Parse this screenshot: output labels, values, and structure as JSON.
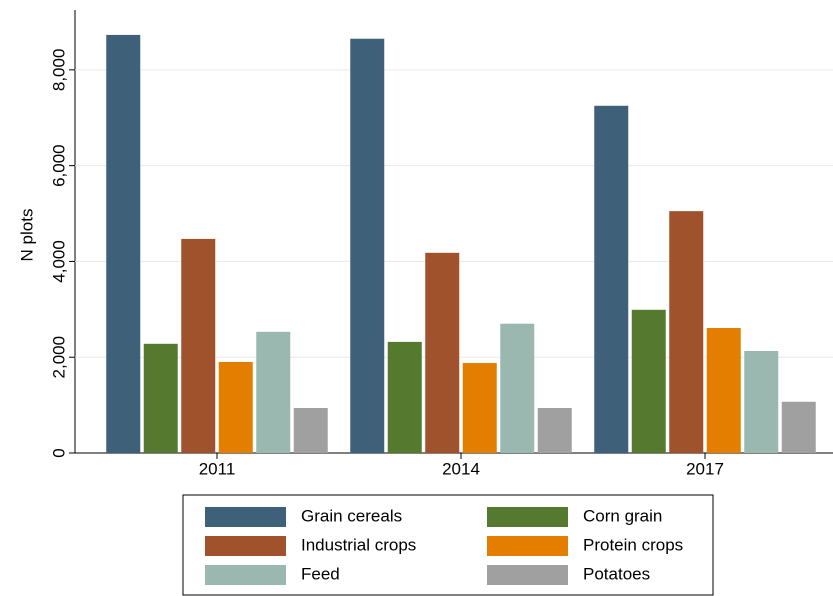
{
  "chart_data": {
    "type": "bar",
    "y_label": "N plots",
    "categories": [
      "2011",
      "2014",
      "2017"
    ],
    "series": [
      {
        "name": "Grain cereals",
        "color": "#3e6179",
        "values": [
          8730,
          8650,
          7250
        ]
      },
      {
        "name": "Corn grain",
        "color": "#557a2f",
        "values": [
          2280,
          2320,
          2990
        ]
      },
      {
        "name": "Industrial crops",
        "color": "#a0522d",
        "values": [
          4470,
          4180,
          5050
        ]
      },
      {
        "name": "Protein crops",
        "color": "#e37e00",
        "values": [
          1900,
          1880,
          2610
        ]
      },
      {
        "name": "Feed",
        "color": "#9bb8b0",
        "values": [
          2530,
          2700,
          2130
        ]
      },
      {
        "name": "Potatoes",
        "color": "#a0a0a0",
        "values": [
          940,
          940,
          1070
        ]
      }
    ],
    "ylim": [
      0,
      9250
    ],
    "yticks": [
      0,
      {
        "value": 2000,
        "label": "2,000"
      },
      {
        "value": 4000,
        "label": "4,000"
      },
      {
        "value": 6000,
        "label": "6,000"
      },
      {
        "value": 8000,
        "label": "8,000"
      }
    ],
    "grid": true,
    "legend": "bottom"
  }
}
